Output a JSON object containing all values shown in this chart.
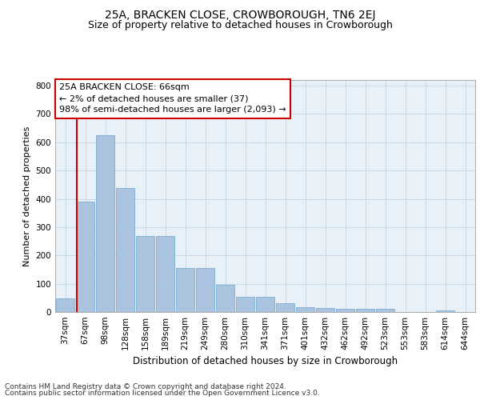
{
  "title1": "25A, BRACKEN CLOSE, CROWBOROUGH, TN6 2EJ",
  "title2": "Size of property relative to detached houses in Crowborough",
  "xlabel": "Distribution of detached houses by size in Crowborough",
  "ylabel": "Number of detached properties",
  "categories": [
    "37sqm",
    "67sqm",
    "98sqm",
    "128sqm",
    "158sqm",
    "189sqm",
    "219sqm",
    "249sqm",
    "280sqm",
    "310sqm",
    "341sqm",
    "371sqm",
    "401sqm",
    "432sqm",
    "462sqm",
    "492sqm",
    "523sqm",
    "553sqm",
    "583sqm",
    "614sqm",
    "644sqm"
  ],
  "values": [
    48,
    390,
    625,
    437,
    270,
    268,
    155,
    155,
    97,
    53,
    53,
    30,
    18,
    15,
    10,
    10,
    10,
    0,
    0,
    5,
    0
  ],
  "bar_color": "#aac4e0",
  "bar_edge_color": "#7aafd4",
  "highlight_line_color": "#cc0000",
  "annotation_text": "25A BRACKEN CLOSE: 66sqm\n← 2% of detached houses are smaller (37)\n98% of semi-detached houses are larger (2,093) →",
  "annotation_box_color": "#cc0000",
  "ylim": [
    0,
    820
  ],
  "yticks": [
    0,
    100,
    200,
    300,
    400,
    500,
    600,
    700,
    800
  ],
  "grid_color": "#c8d8e8",
  "background_color": "#e8f0f8",
  "footer1": "Contains HM Land Registry data © Crown copyright and database right 2024.",
  "footer2": "Contains public sector information licensed under the Open Government Licence v3.0.",
  "title1_fontsize": 10,
  "title2_fontsize": 9,
  "axis_label_fontsize": 8,
  "tick_fontsize": 7.5,
  "annotation_fontsize": 8,
  "footer_fontsize": 6.5
}
